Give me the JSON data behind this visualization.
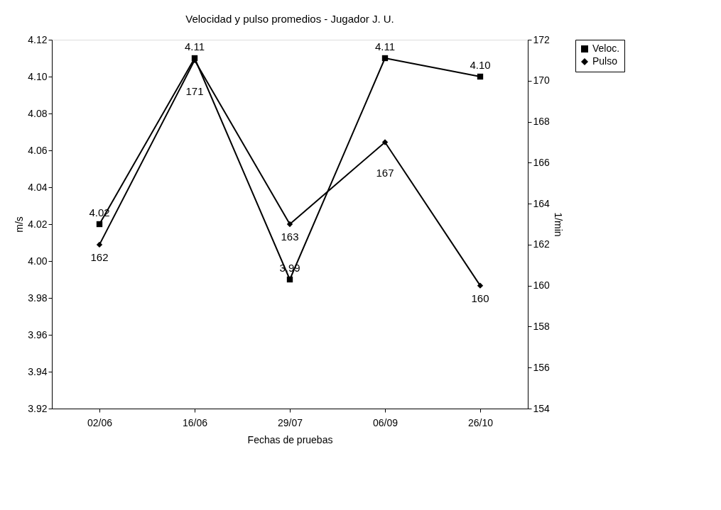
{
  "chart_data": {
    "type": "line",
    "title": "Velocidad y pulso promedios - Jugador J. U.",
    "xlabel": "Fechas de pruebas",
    "ylabel": "m/s",
    "y2label": "1/min",
    "categories": [
      "02/06",
      "16/06",
      "29/07",
      "06/09",
      "26/10"
    ],
    "series": [
      {
        "name": "Veloc.",
        "color": "#000000",
        "marker": "square",
        "values": [
          4.02,
          4.11,
          3.99,
          4.11,
          4.1
        ],
        "value_labels": [
          "4.02",
          "4.11",
          "3.99",
          "4.11",
          "4.10"
        ]
      },
      {
        "name": "Pulso",
        "color": "#000000",
        "marker": "diamond",
        "axis": "y2",
        "values": [
          162,
          171,
          163,
          167,
          160
        ],
        "value_labels": [
          "162",
          "171",
          "163",
          "167",
          "160"
        ]
      }
    ],
    "ylim": [
      3.92,
      4.12
    ],
    "yticks": [
      {
        "value": 3.92,
        "label": "3.92"
      },
      {
        "value": 3.94,
        "label": "3.94"
      },
      {
        "value": 3.96,
        "label": "3.96"
      },
      {
        "value": 3.98,
        "label": "3.98"
      },
      {
        "value": 4.0,
        "label": "4.00"
      },
      {
        "value": 4.02,
        "label": "4.02"
      },
      {
        "value": 4.04,
        "label": "4.04"
      },
      {
        "value": 4.06,
        "label": "4.06"
      },
      {
        "value": 4.08,
        "label": "4.08"
      },
      {
        "value": 4.1,
        "label": "4.10"
      },
      {
        "value": 4.12,
        "label": "4.12"
      }
    ],
    "y2lim": [
      154,
      172
    ],
    "y2ticks": [
      154,
      156,
      158,
      160,
      162,
      164,
      166,
      168,
      170,
      172
    ],
    "grid": false,
    "legend": "right"
  }
}
